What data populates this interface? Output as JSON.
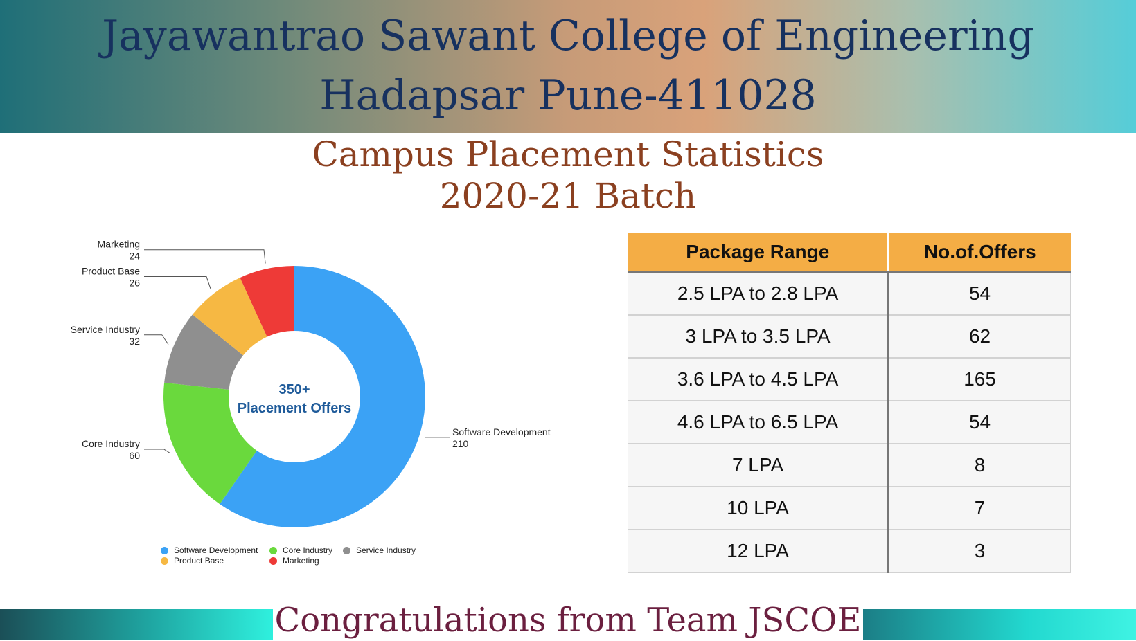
{
  "header": {
    "line1": "Jayawantrao Sawant College of Engineering",
    "line2": "Hadapsar Pune-411028"
  },
  "subtitle": {
    "line1": "Campus Placement Statistics",
    "line2": "2020-21 Batch"
  },
  "chart_data": [
    {
      "type": "pie",
      "donut": true,
      "center_label": [
        "350+",
        "Placement Offers"
      ],
      "categories": [
        "Software Development",
        "Core Industry",
        "Service Industry",
        "Product Base",
        "Marketing"
      ],
      "values": [
        210,
        60,
        32,
        26,
        24
      ],
      "colors": [
        "#3ba2f5",
        "#6ad93d",
        "#8f8f8f",
        "#f6b843",
        "#ee3a37"
      ],
      "legend_placement": "bottom"
    },
    {
      "type": "table",
      "columns": [
        "Package Range",
        "No.of.Offers"
      ],
      "rows": [
        [
          "2.5 LPA to 2.8 LPA",
          "54"
        ],
        [
          "3 LPA to 3.5 LPA",
          "62"
        ],
        [
          "3.6 LPA to 4.5 LPA",
          "165"
        ],
        [
          "4.6 LPA to 6.5 LPA",
          "54"
        ],
        [
          "7 LPA",
          "8"
        ],
        [
          "10 LPA",
          "7"
        ],
        [
          "12 LPA",
          "3"
        ]
      ]
    }
  ],
  "footer": {
    "text": "Congratulations from Team JSCOE"
  }
}
